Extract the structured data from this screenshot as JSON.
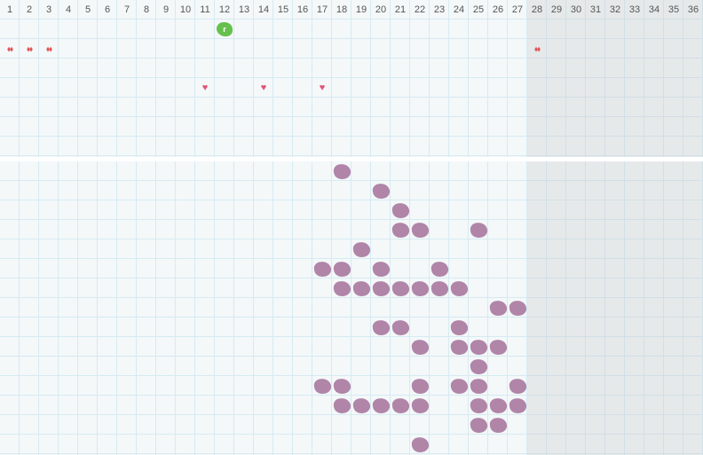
{
  "days": [
    1,
    2,
    3,
    4,
    5,
    6,
    7,
    8,
    9,
    10,
    11,
    12,
    13,
    14,
    15,
    16,
    17,
    18,
    19,
    20,
    21,
    22,
    23,
    24,
    25,
    26,
    27,
    28,
    29,
    30,
    31,
    32,
    33,
    34,
    35,
    36
  ],
  "shaded_from_day": 28,
  "top_marks": {
    "event": {
      "day": 12,
      "icon": "green-blob-icon",
      "label": "r",
      "color": "#66c04d"
    },
    "bleeding_days": [
      1,
      2,
      3,
      28
    ],
    "bleeding_color": "#e05555",
    "heart_days": [
      11,
      14,
      17
    ],
    "heart_color": "#e0557a"
  },
  "bottom_marks": {
    "color": "#b085a8",
    "rows": [
      [
        18
      ],
      [
        20
      ],
      [
        21
      ],
      [
        21,
        22,
        25
      ],
      [
        19
      ],
      [
        17,
        18,
        20,
        23
      ],
      [
        18,
        19,
        20,
        21,
        22,
        23,
        24
      ],
      [
        26,
        27
      ],
      [
        20,
        21,
        24
      ],
      [
        22,
        24,
        25,
        26
      ],
      [
        25
      ],
      [
        17,
        18,
        22,
        24,
        25,
        27
      ],
      [
        18,
        19,
        20,
        21,
        22,
        25,
        26,
        27
      ],
      [
        25,
        26
      ],
      [
        22
      ]
    ]
  }
}
